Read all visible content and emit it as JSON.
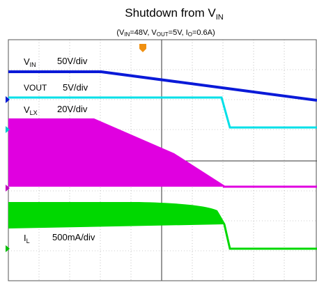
{
  "title": {
    "text": "Shutdown from V",
    "sub": "IN"
  },
  "subtitle": {
    "parts": [
      "(V",
      "IN",
      "=48V,  V",
      "OUT",
      "=5V, I",
      "O",
      "=0.6A)"
    ]
  },
  "channels": [
    {
      "name": "V",
      "sub": "IN",
      "scale": "50V/div"
    },
    {
      "name": "VOUT",
      "scale": "5V/div"
    },
    {
      "name": "V",
      "sub": "LX",
      "scale": "20V/div"
    },
    {
      "name": "I",
      "sub": "L",
      "scale": "500mA/div"
    }
  ]
}
